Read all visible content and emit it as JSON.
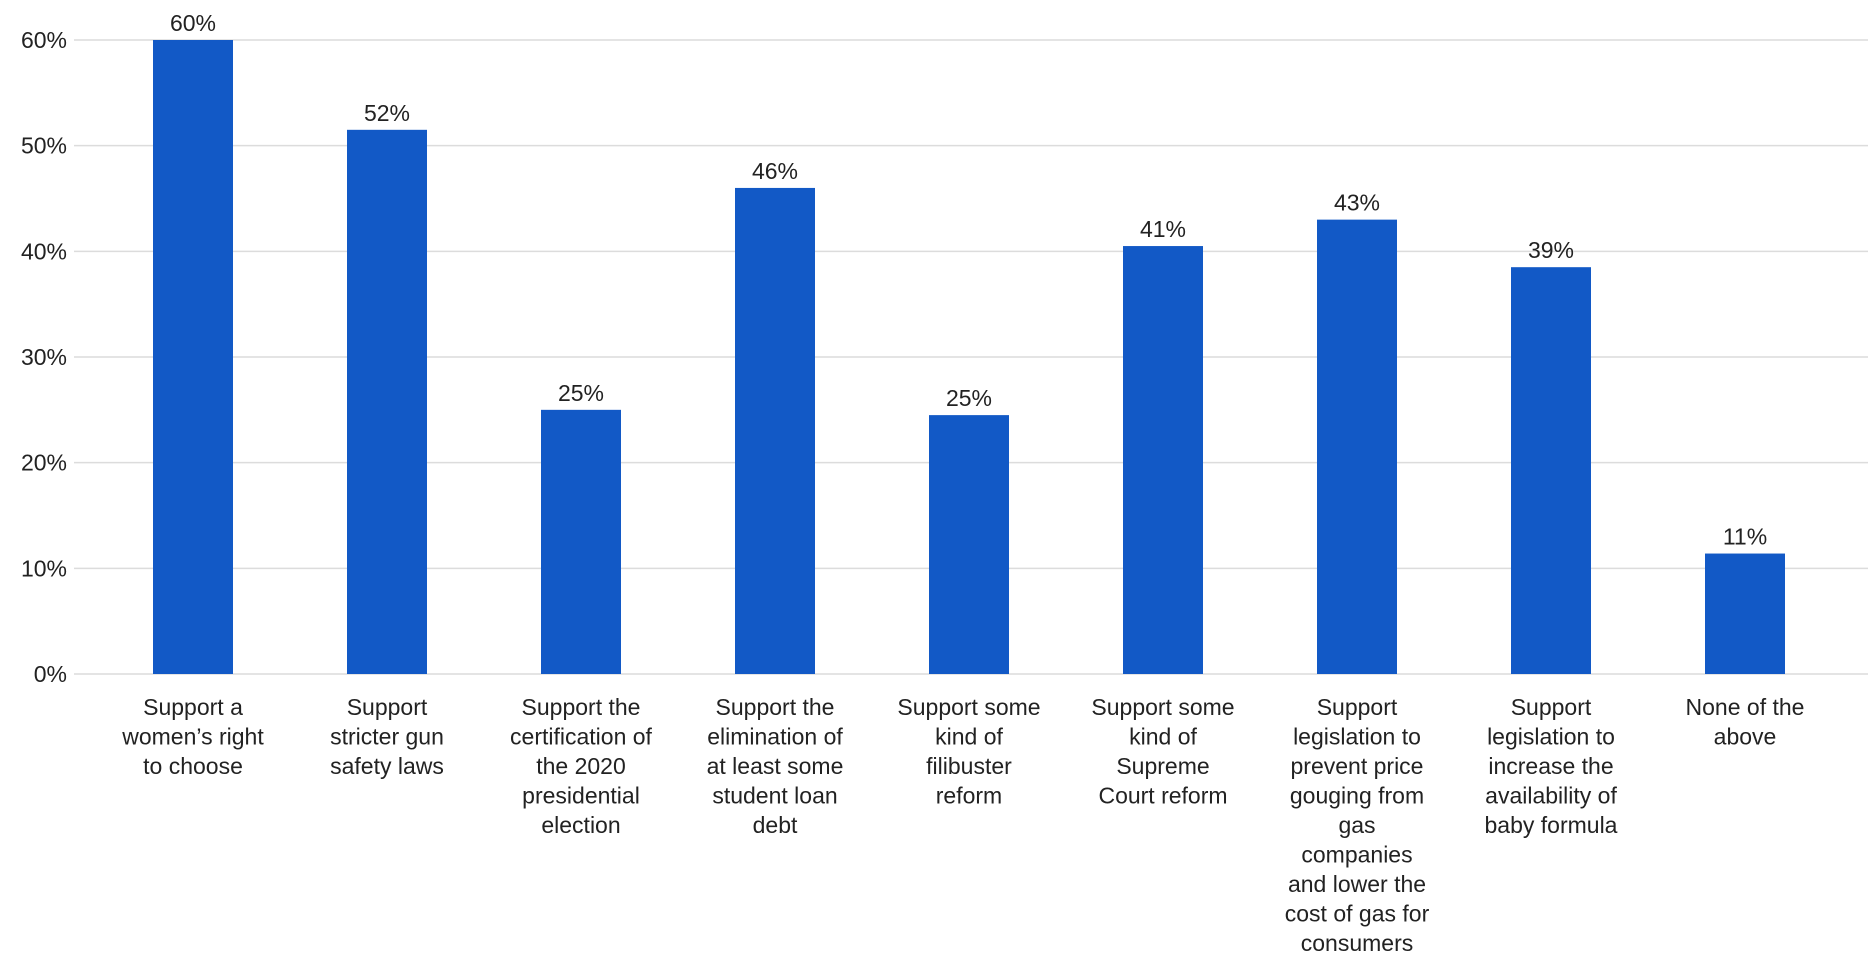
{
  "colors": {
    "bar": "#1259C6",
    "grid": "#DCDCDC",
    "text": "#222222",
    "background": "#FFFFFF"
  },
  "chart_data": {
    "type": "bar",
    "title": "",
    "xlabel": "",
    "ylabel": "",
    "ylim": [
      0,
      60
    ],
    "y_ticks": [
      0,
      10,
      20,
      30,
      40,
      50,
      60
    ],
    "y_tick_labels": [
      "0%",
      "10%",
      "20%",
      "30%",
      "40%",
      "50%",
      "60%"
    ],
    "grid": true,
    "categories": [
      "Support a women’s right to choose",
      "Support stricter gun safety laws",
      "Support the certification of the 2020 presidential election",
      "Support the elimination of at least some student loan debt",
      "Support some kind of filibuster reform",
      "Support some kind of Supreme Court reform",
      "Support legislation to prevent price gouging from gas companies and lower the cost of gas for consumers",
      "Support legislation to increase the availability of baby formula",
      "None of the above"
    ],
    "category_lines": [
      [
        "Support a",
        "women’s right",
        "to choose"
      ],
      [
        "Support",
        "stricter gun",
        "safety laws"
      ],
      [
        "Support the",
        "certification of",
        "the 2020",
        "presidential",
        "election"
      ],
      [
        "Support the",
        "elimination of",
        "at least some",
        "student loan",
        "debt"
      ],
      [
        "Support some",
        "kind of",
        "filibuster",
        "reform"
      ],
      [
        "Support some",
        "kind of",
        "Supreme",
        "Court reform"
      ],
      [
        "Support",
        "legislation to",
        "prevent price",
        "gouging from",
        "gas",
        "companies",
        "and lower the",
        "cost of gas for",
        "consumers"
      ],
      [
        "Support",
        "legislation to",
        "increase the",
        "availability of",
        "baby formula"
      ],
      [
        "None of the",
        "above"
      ]
    ],
    "values": [
      60,
      51.5,
      25,
      46,
      24.5,
      40.5,
      43,
      38.5,
      11.4
    ],
    "data_labels": [
      "60%",
      "52%",
      "25%",
      "46%",
      "25%",
      "41%",
      "43%",
      "39%",
      "11%"
    ]
  }
}
